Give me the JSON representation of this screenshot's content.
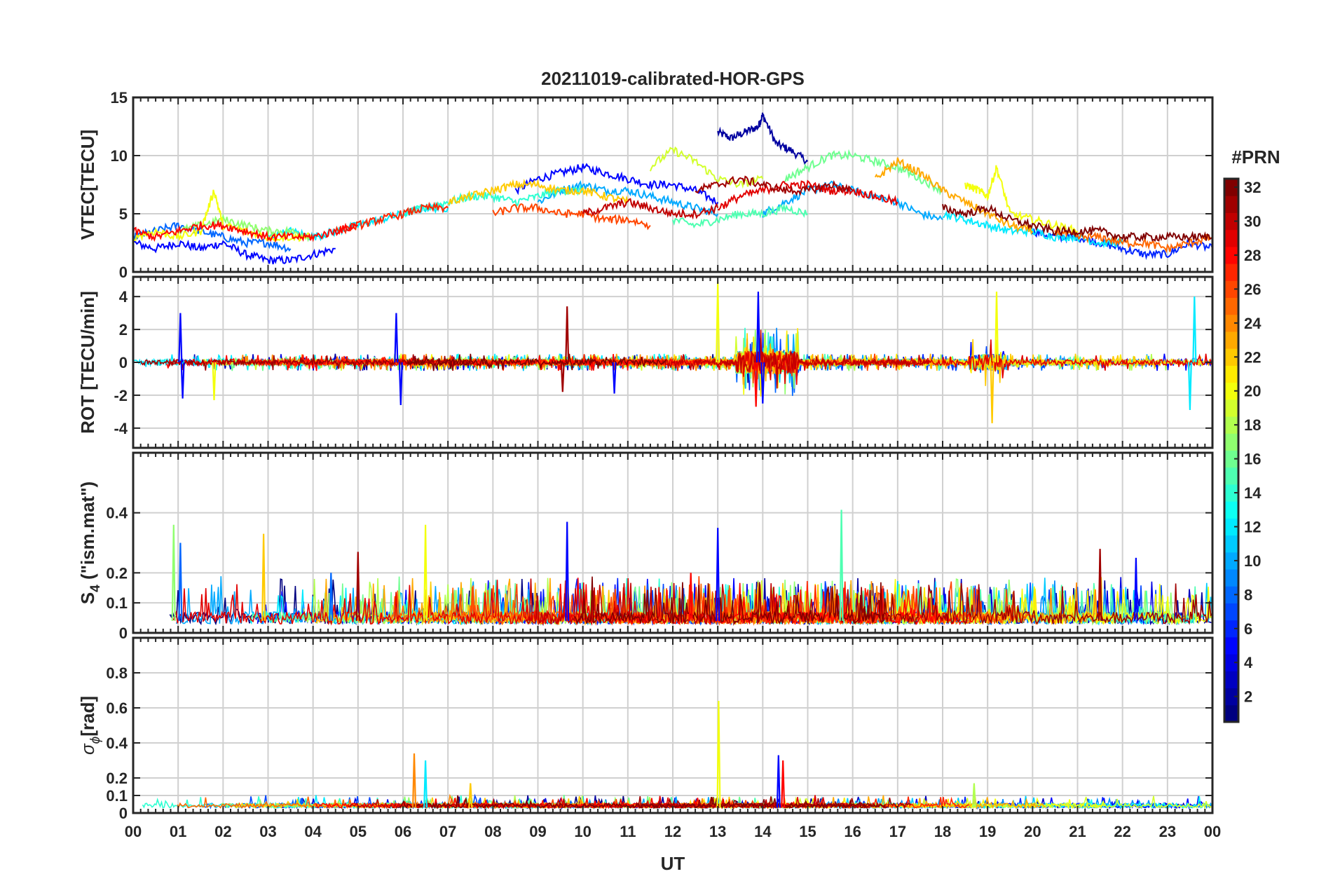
{
  "figure": {
    "title": "20211019-calibrated-HOR-GPS",
    "xlabel": "UT",
    "x_tick_labels": [
      "00",
      "01",
      "02",
      "03",
      "04",
      "05",
      "06",
      "07",
      "08",
      "09",
      "10",
      "11",
      "12",
      "13",
      "14",
      "15",
      "16",
      "17",
      "18",
      "19",
      "20",
      "21",
      "22",
      "23",
      "00"
    ]
  },
  "colorbar": {
    "label": "#PRN",
    "range": [
      1,
      32
    ],
    "tick_labels": [
      "2",
      "4",
      "6",
      "8",
      "10",
      "12",
      "14",
      "16",
      "18",
      "20",
      "22",
      "24",
      "26",
      "28",
      "30",
      "32"
    ],
    "tick_values": [
      2,
      4,
      6,
      8,
      10,
      12,
      14,
      16,
      18,
      20,
      22,
      24,
      26,
      28,
      30,
      32
    ],
    "colormap": "jet",
    "colors": [
      "#00008f",
      "#0000ff",
      "#0080ff",
      "#00ffff",
      "#80ff80",
      "#ffff00",
      "#ff8000",
      "#ff0000",
      "#800000"
    ]
  },
  "chart_data": [
    {
      "type": "line",
      "panel": "vtec",
      "ylabel": "VTEC[TECU]",
      "ylim": [
        0,
        15
      ],
      "y_tick_labels": [
        "0",
        "5",
        "10",
        "15"
      ],
      "y_tick_values": [
        0,
        5,
        10,
        15
      ],
      "xlim": [
        0,
        24
      ],
      "grid": true,
      "series": [
        {
          "prn": 2,
          "x": [
            13.0,
            13.3,
            13.6,
            13.9,
            14.0,
            14.3,
            14.6,
            15.0
          ],
          "y": [
            12.0,
            11.5,
            12.0,
            12.5,
            13.5,
            11.0,
            10.5,
            9.5
          ]
        },
        {
          "prn": 5,
          "x": [
            0,
            0.5,
            1.0,
            1.5,
            2.0,
            2.5,
            3.0,
            3.5,
            4.0,
            4.5
          ],
          "y": [
            2.5,
            2.0,
            2.5,
            2.0,
            2.5,
            1.5,
            1.0,
            1.0,
            1.5,
            2.0
          ]
        },
        {
          "prn": 5,
          "x": [
            8.5,
            9.0,
            9.5,
            10.0,
            10.5,
            11.0,
            11.5,
            12.0,
            12.5,
            13.0
          ],
          "y": [
            7.0,
            8.0,
            8.5,
            9.0,
            8.5,
            8.0,
            7.5,
            7.5,
            7.0,
            6.0
          ]
        },
        {
          "prn": 6,
          "x": [
            20.0,
            20.5,
            21.0,
            21.5,
            22.0,
            22.5,
            23.0,
            23.5,
            24.0
          ],
          "y": [
            3.5,
            3.0,
            3.0,
            2.5,
            2.0,
            1.5,
            1.5,
            2.5,
            2.0
          ]
        },
        {
          "prn": 8,
          "x": [
            0,
            0.5,
            1.0,
            1.5,
            2.0,
            2.5,
            3.0,
            3.5
          ],
          "y": [
            3.0,
            3.5,
            4.0,
            3.5,
            3.0,
            2.5,
            2.5,
            2.0
          ]
        },
        {
          "prn": 10,
          "x": [
            9.0,
            9.5,
            10.0,
            10.5,
            11.0,
            11.5,
            12.0,
            12.5,
            13.0
          ],
          "y": [
            6.0,
            7.0,
            7.5,
            7.0,
            7.0,
            6.5,
            6.0,
            5.5,
            5.0
          ]
        },
        {
          "prn": 10,
          "x": [
            14.0,
            14.5,
            15.0,
            15.5,
            16.0,
            16.5,
            17.0,
            17.5,
            18.0
          ],
          "y": [
            5.0,
            6.0,
            7.0,
            7.5,
            7.0,
            6.5,
            6.0,
            5.0,
            4.5
          ]
        },
        {
          "prn": 12,
          "x": [
            3.0,
            3.5,
            4.0,
            4.5,
            5.0,
            5.5,
            6.0,
            6.5,
            7.0
          ],
          "y": [
            3.0,
            3.5,
            3.0,
            3.5,
            4.0,
            4.5,
            5.0,
            5.5,
            5.5
          ]
        },
        {
          "prn": 12,
          "x": [
            18.0,
            18.5,
            19.0,
            19.5,
            20.0,
            20.5,
            21.0,
            21.5,
            22.0
          ],
          "y": [
            5.0,
            4.5,
            4.0,
            3.5,
            3.5,
            3.0,
            3.0,
            2.5,
            2.5
          ]
        },
        {
          "prn": 14,
          "x": [
            6.0,
            6.5,
            7.0,
            7.5,
            8.0,
            8.5,
            9.0,
            9.5,
            10.0
          ],
          "y": [
            5.0,
            5.5,
            6.0,
            6.5,
            6.5,
            6.0,
            6.5,
            7.0,
            7.0
          ]
        },
        {
          "prn": 15,
          "x": [
            12.0,
            12.5,
            13.0,
            13.5,
            14.0,
            14.5,
            15.0
          ],
          "y": [
            4.5,
            4.0,
            4.5,
            5.0,
            5.0,
            5.5,
            5.0
          ]
        },
        {
          "prn": 16,
          "x": [
            14.5,
            15.0,
            15.5,
            16.0,
            16.5,
            17.0,
            17.5,
            18.0
          ],
          "y": [
            8.0,
            9.0,
            10.0,
            10.0,
            9.5,
            9.0,
            8.0,
            7.0
          ]
        },
        {
          "prn": 17,
          "x": [
            1.0,
            1.5,
            2.0,
            2.5,
            3.0,
            3.5,
            4.0
          ],
          "y": [
            3.5,
            4.0,
            4.5,
            4.0,
            3.5,
            3.5,
            3.0
          ]
        },
        {
          "prn": 19,
          "x": [
            11.5,
            12.0,
            12.5,
            13.0,
            13.5,
            14.0
          ],
          "y": [
            9.0,
            10.5,
            9.5,
            8.0,
            7.5,
            8.0
          ]
        },
        {
          "prn": 20,
          "x": [
            0,
            0.5,
            1.0,
            1.5,
            1.8,
            2.0,
            2.5,
            3.0,
            3.5,
            4.0
          ],
          "y": [
            3.0,
            3.5,
            3.0,
            3.5,
            7.0,
            4.0,
            3.5,
            3.0,
            3.0,
            3.0
          ]
        },
        {
          "prn": 20,
          "x": [
            18.5,
            18.8,
            19.0,
            19.2,
            19.5,
            20.0,
            20.5,
            21.0
          ],
          "y": [
            7.5,
            7.0,
            6.5,
            9.0,
            5.0,
            4.5,
            4.0,
            3.5
          ]
        },
        {
          "prn": 22,
          "x": [
            7.0,
            7.5,
            8.0,
            8.5,
            9.0,
            9.5,
            10.0,
            10.5,
            11.0
          ],
          "y": [
            6.0,
            6.5,
            7.0,
            7.5,
            7.5,
            7.0,
            7.0,
            6.5,
            6.0
          ]
        },
        {
          "prn": 23,
          "x": [
            16.5,
            17.0,
            17.5,
            18.0,
            18.5,
            19.0,
            19.5,
            20.0
          ],
          "y": [
            8.0,
            9.5,
            8.5,
            7.0,
            6.0,
            5.0,
            4.0,
            3.5
          ]
        },
        {
          "prn": 25,
          "x": [
            20.5,
            21.0,
            21.5,
            22.0,
            22.5,
            23.0,
            23.5,
            24.0
          ],
          "y": [
            3.5,
            3.0,
            3.0,
            2.5,
            2.5,
            2.0,
            2.5,
            3.0
          ]
        },
        {
          "prn": 26,
          "x": [
            8.0,
            8.5,
            9.0,
            9.5,
            10.0,
            10.5,
            11.0,
            11.5
          ],
          "y": [
            5.0,
            5.5,
            5.5,
            5.0,
            5.0,
            4.5,
            4.5,
            4.0
          ]
        },
        {
          "prn": 27,
          "x": [
            4.5,
            5.0,
            5.5,
            6.0,
            6.5,
            7.0
          ],
          "y": [
            3.5,
            4.0,
            4.5,
            5.0,
            5.5,
            5.5
          ]
        },
        {
          "prn": 28,
          "x": [
            0,
            0.5,
            1.0,
            1.5,
            2.0,
            2.5,
            3.0,
            3.5,
            4.0,
            4.5,
            5.0
          ],
          "y": [
            3.5,
            3.0,
            3.5,
            4.0,
            4.0,
            3.5,
            3.0,
            3.0,
            3.0,
            3.5,
            4.0
          ]
        },
        {
          "prn": 29,
          "x": [
            13.0,
            13.5,
            14.0,
            14.5,
            15.0,
            15.5,
            16.0,
            16.5,
            17.0
          ],
          "y": [
            5.5,
            6.5,
            7.0,
            7.5,
            7.5,
            7.0,
            7.0,
            6.5,
            6.0
          ]
        },
        {
          "prn": 30,
          "x": [
            10.0,
            10.5,
            11.0,
            11.5,
            12.0,
            12.5,
            13.0
          ],
          "y": [
            5.0,
            5.5,
            6.0,
            5.5,
            5.0,
            5.0,
            5.5
          ]
        },
        {
          "prn": 31,
          "x": [
            12.5,
            13.0,
            13.5,
            14.0,
            14.5,
            15.0,
            15.5,
            16.0
          ],
          "y": [
            7.0,
            7.5,
            8.0,
            7.5,
            7.0,
            7.0,
            7.5,
            7.0
          ]
        },
        {
          "prn": 32,
          "x": [
            18.0,
            18.5,
            19.0,
            19.5,
            20.0,
            20.5,
            21.0,
            21.5,
            22.0,
            22.5,
            23.0,
            23.5,
            24.0
          ],
          "y": [
            5.5,
            5.0,
            5.5,
            4.5,
            4.0,
            3.5,
            3.5,
            3.5,
            3.0,
            3.0,
            3.0,
            3.0,
            3.0
          ]
        }
      ]
    },
    {
      "type": "line",
      "panel": "rot",
      "ylabel": "ROT [TECU/min]",
      "ylim": [
        -5.2,
        5.2
      ],
      "y_tick_labels": [
        "-4",
        "-2",
        "0",
        "2",
        "4"
      ],
      "y_tick_values": [
        -4,
        -2,
        0,
        2,
        4
      ],
      "xlim": [
        0,
        24
      ],
      "grid": true,
      "spikes": [
        {
          "prn": 5,
          "x": 1.05,
          "y": 3.0
        },
        {
          "prn": 5,
          "x": 1.1,
          "y": -2.2
        },
        {
          "prn": 20,
          "x": 1.8,
          "y": -2.3
        },
        {
          "prn": 5,
          "x": 5.85,
          "y": 3.0
        },
        {
          "prn": 5,
          "x": 5.95,
          "y": -2.6
        },
        {
          "prn": 31,
          "x": 9.65,
          "y": 3.4
        },
        {
          "prn": 31,
          "x": 9.55,
          "y": -1.8
        },
        {
          "prn": 5,
          "x": 10.7,
          "y": -1.9
        },
        {
          "prn": 20,
          "x": 13.0,
          "y": 4.9
        },
        {
          "prn": 5,
          "x": 13.9,
          "y": 4.3
        },
        {
          "prn": 5,
          "x": 14.0,
          "y": -2.5
        },
        {
          "prn": 28,
          "x": 13.85,
          "y": -2.7
        },
        {
          "prn": 20,
          "x": 19.2,
          "y": 4.3
        },
        {
          "prn": 22,
          "x": 19.1,
          "y": -3.7
        },
        {
          "prn": 12,
          "x": 23.6,
          "y": 4.0
        },
        {
          "prn": 12,
          "x": 23.5,
          "y": -2.9
        }
      ]
    },
    {
      "type": "line",
      "panel": "s4",
      "ylabel": "S",
      "ylabel_subscript": "4",
      "ylabel_suffix": " (\"ism.mat\")",
      "ylim": [
        0,
        0.6
      ],
      "y_tick_labels": [
        "0",
        "0.1",
        "0.2",
        "0.4"
      ],
      "y_tick_values": [
        0,
        0.1,
        0.2,
        0.4
      ],
      "xlim": [
        0,
        24
      ],
      "grid": true,
      "spikes": [
        {
          "prn": 17,
          "x": 0.9,
          "y": 0.36
        },
        {
          "prn": 8,
          "x": 1.05,
          "y": 0.3
        },
        {
          "prn": 22,
          "x": 2.9,
          "y": 0.33
        },
        {
          "prn": 20,
          "x": 6.5,
          "y": 0.36
        },
        {
          "prn": 5,
          "x": 9.65,
          "y": 0.37
        },
        {
          "prn": 5,
          "x": 13.0,
          "y": 0.35
        },
        {
          "prn": 15,
          "x": 15.75,
          "y": 0.41
        },
        {
          "prn": 28,
          "x": 12.4,
          "y": 0.2
        },
        {
          "prn": 31,
          "x": 21.5,
          "y": 0.28
        },
        {
          "prn": 5,
          "x": 22.3,
          "y": 0.25
        },
        {
          "prn": 8,
          "x": 4.4,
          "y": 0.2
        },
        {
          "prn": 31,
          "x": 5.0,
          "y": 0.27
        }
      ]
    },
    {
      "type": "line",
      "panel": "sigma_phi",
      "ylabel": "σ",
      "ylabel_subscript": "ϕ",
      "ylabel_suffix": "[rad]",
      "ylim": [
        0,
        1.0
      ],
      "y_tick_labels": [
        "0",
        "0.1",
        "0.2",
        "0.4",
        "0.6",
        "0.8"
      ],
      "y_tick_values": [
        0,
        0.1,
        0.2,
        0.4,
        0.6,
        0.8
      ],
      "xlim": [
        0,
        24
      ],
      "grid": true,
      "spikes": [
        {
          "prn": 20,
          "x": 13.02,
          "y": 0.64
        },
        {
          "prn": 24,
          "x": 6.25,
          "y": 0.34
        },
        {
          "prn": 12,
          "x": 6.5,
          "y": 0.3
        },
        {
          "prn": 5,
          "x": 14.35,
          "y": 0.33
        },
        {
          "prn": 28,
          "x": 14.45,
          "y": 0.3
        },
        {
          "prn": 18,
          "x": 18.7,
          "y": 0.17
        },
        {
          "prn": 22,
          "x": 7.5,
          "y": 0.17
        }
      ]
    }
  ]
}
